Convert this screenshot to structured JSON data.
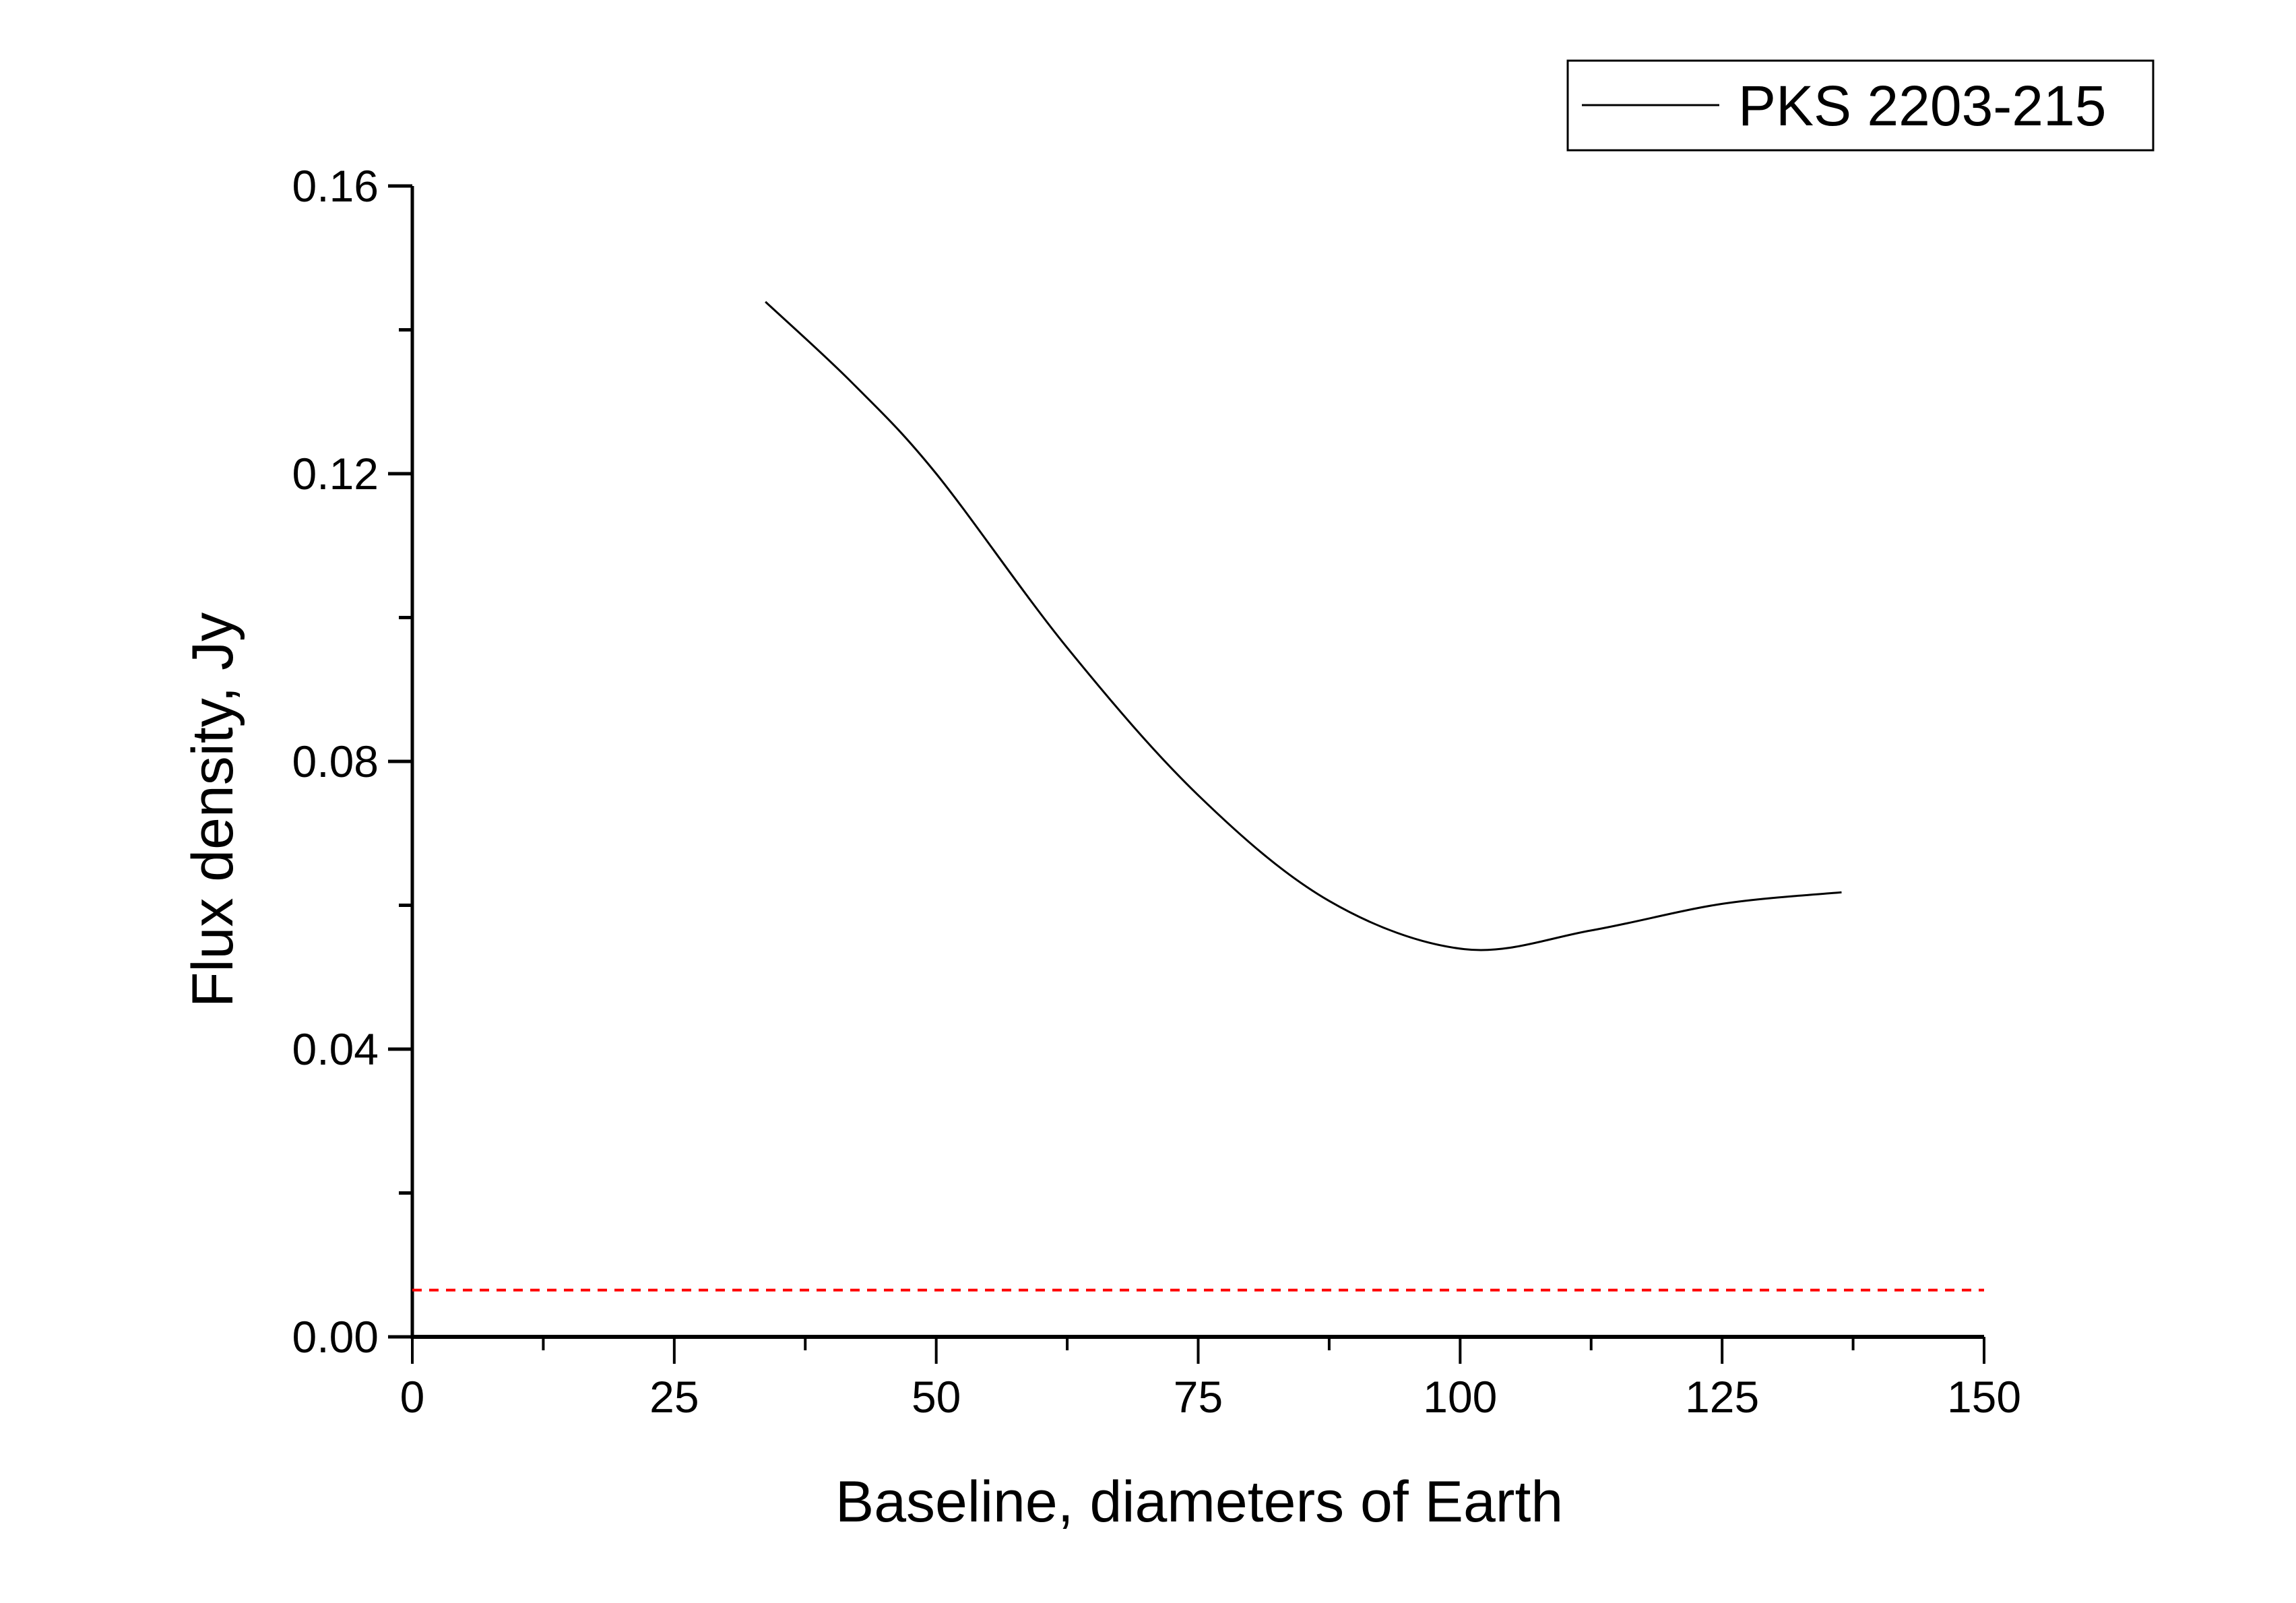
{
  "chart_data": {
    "type": "line",
    "title": "",
    "xlabel": "Baseline, diameters of Earth",
    "ylabel": "Flux density, Jy",
    "xlim": [
      0,
      150
    ],
    "ylim": [
      0,
      0.16
    ],
    "x_ticks": [
      0,
      25,
      50,
      75,
      100,
      125,
      150
    ],
    "x_tick_labels": [
      "0",
      "25",
      "50",
      "75",
      "100",
      "125",
      "150"
    ],
    "y_ticks": [
      0,
      0.04,
      0.08,
      0.12,
      0.16
    ],
    "y_tick_labels": [
      "0.00",
      "0.04",
      "0.08",
      "0.12",
      "0.16"
    ],
    "grid": false,
    "legend_position": "top-right",
    "series": [
      {
        "name": "PKS 2203-215",
        "color": "#000000",
        "style": "solid",
        "x": [
          33.7,
          42,
          50,
          62.5,
          75,
          87.5,
          100.4,
          112.5,
          125,
          136.4
        ],
        "y": [
          0.1439,
          0.1326,
          0.12,
          0.0958,
          0.0753,
          0.0606,
          0.0539,
          0.0565,
          0.0602,
          0.0618
        ]
      }
    ],
    "reference_lines": [
      {
        "orientation": "horizontal",
        "value": 0.0065,
        "color": "#ff0000",
        "style": "dashed",
        "x_range": [
          0,
          150
        ]
      }
    ]
  }
}
